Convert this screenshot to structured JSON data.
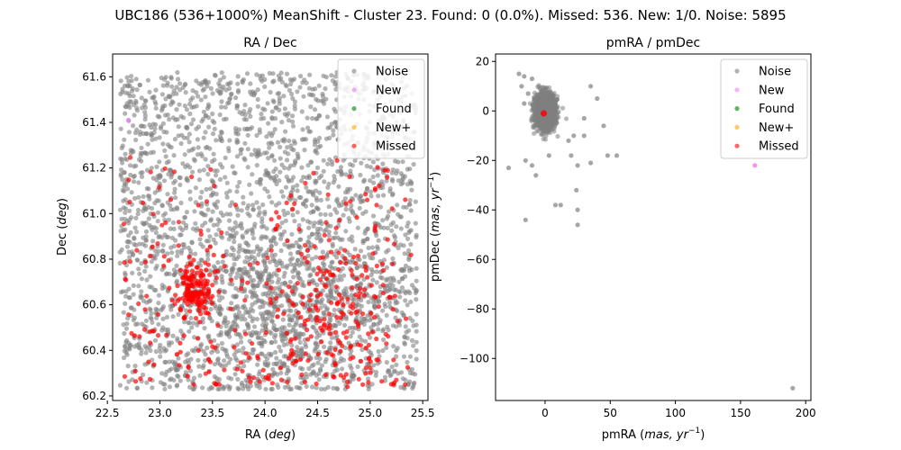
{
  "figure": {
    "title": "UBC186 (536+1000%) MeanShift - Cluster 23. Found: 0 (0.0%). Missed: 536. New: 1/0. Noise: 5895"
  },
  "legend_entries": [
    {
      "label": "Noise",
      "color": "#808080"
    },
    {
      "label": "New",
      "color": "#ee82ee"
    },
    {
      "label": "Found",
      "color": "#008000"
    },
    {
      "label": "New+",
      "color": "#ffa500"
    },
    {
      "label": "Missed",
      "color": "#ff0000"
    }
  ],
  "chart_data": [
    {
      "type": "scatter",
      "title": "RA / Dec",
      "xlabel": "RA (deg)",
      "ylabel": "Dec (deg)",
      "xlim": [
        22.55,
        25.55
      ],
      "ylim": [
        60.18,
        61.7
      ],
      "xticks": [
        22.5,
        23.0,
        23.5,
        24.0,
        24.5,
        25.0,
        25.5
      ],
      "yticks": [
        60.2,
        60.4,
        60.6,
        60.8,
        61.0,
        61.2,
        61.4,
        61.6
      ],
      "tick_decimals": 1,
      "legend_position": "top-right",
      "series": [
        {
          "name": "Noise",
          "count": 5895,
          "x_range": [
            22.62,
            25.44
          ],
          "y_range": [
            60.23,
            61.62
          ]
        },
        {
          "name": "New",
          "points": [
            [
              22.7,
              61.41
            ]
          ]
        },
        {
          "name": "Found",
          "points": []
        },
        {
          "name": "New+",
          "points": []
        },
        {
          "name": "Missed",
          "count": 536,
          "concentration": {
            "x": 23.35,
            "y": 60.66
          }
        }
      ]
    },
    {
      "type": "scatter",
      "title": "pmRA / pmDec",
      "xlabel": "pmRA (mas, yr^-1)",
      "ylabel": "pmDec (mas, yr^-1)",
      "xlim": [
        -38,
        204
      ],
      "ylim": [
        -117,
        23
      ],
      "xticks": [
        0,
        50,
        100,
        150,
        200
      ],
      "yticks": [
        -100,
        -80,
        -60,
        -40,
        -20,
        0,
        20
      ],
      "tick_decimals": 0,
      "legend_position": "top-right",
      "series": [
        {
          "name": "Noise",
          "core": {
            "x": 0,
            "y": 0
          },
          "outliers": [
            [
              -20,
              15
            ],
            [
              -16,
              14
            ],
            [
              -10,
              13
            ],
            [
              -13,
              7
            ],
            [
              -16,
              3
            ],
            [
              -18,
              10
            ],
            [
              35,
              10
            ],
            [
              40,
              5
            ],
            [
              30,
              -3
            ],
            [
              18,
              -12
            ],
            [
              22,
              -10
            ],
            [
              30,
              -10
            ],
            [
              45,
              -6
            ],
            [
              48,
              -18
            ],
            [
              55,
              -18
            ],
            [
              -28,
              -23
            ],
            [
              -15,
              -20
            ],
            [
              -10,
              -22
            ],
            [
              -7,
              -26
            ],
            [
              3,
              -18
            ],
            [
              20,
              -18
            ],
            [
              25,
              -22
            ],
            [
              35,
              -21
            ],
            [
              8,
              -38
            ],
            [
              12,
              -38
            ],
            [
              24,
              -32
            ],
            [
              25,
              -40
            ],
            [
              -15,
              -44
            ],
            [
              25,
              -46
            ],
            [
              190,
              -112
            ]
          ]
        },
        {
          "name": "New",
          "points": [
            [
              161,
              -22
            ]
          ]
        },
        {
          "name": "Found",
          "points": []
        },
        {
          "name": "New+",
          "points": []
        },
        {
          "name": "Missed",
          "points": [
            [
              -1,
              -1
            ]
          ]
        }
      ]
    }
  ]
}
